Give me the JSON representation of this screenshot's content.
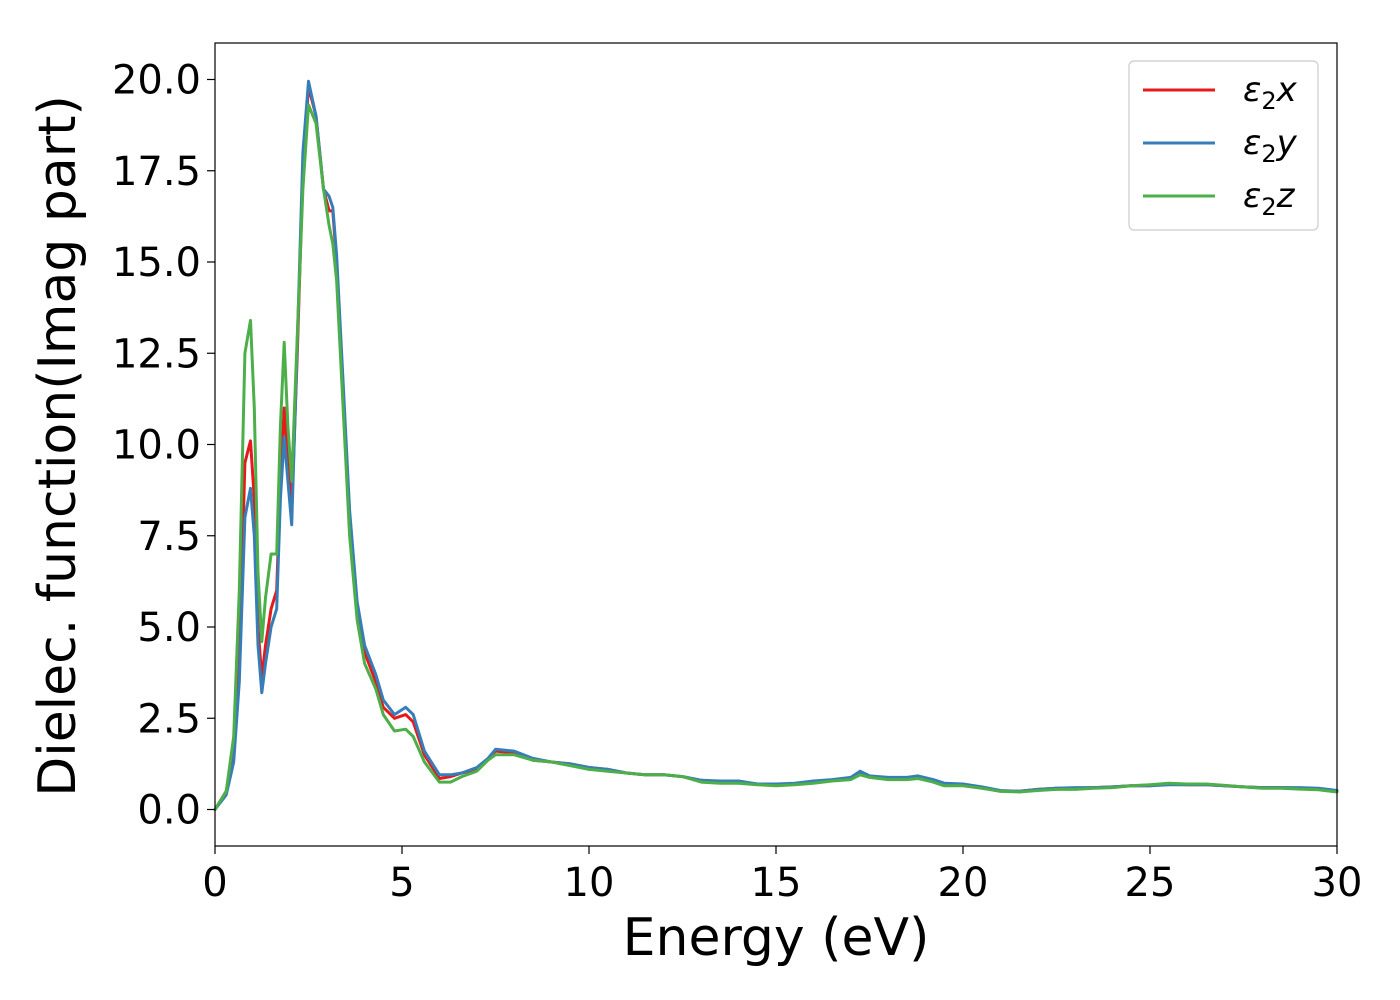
{
  "chart_data": {
    "type": "line",
    "xlabel": "Energy (eV)",
    "ylabel": "Dielec. function(Imag part)",
    "xlim": [
      0,
      30
    ],
    "ylim": [
      -1,
      21
    ],
    "xticks": [
      0,
      5,
      10,
      15,
      20,
      25,
      30
    ],
    "xtick_labels": [
      "0",
      "5",
      "10",
      "15",
      "20",
      "25",
      "30"
    ],
    "yticks": [
      0,
      2.5,
      5,
      7.5,
      10,
      12.5,
      15,
      17.5,
      20
    ],
    "ytick_labels": [
      "0.0",
      "2.5",
      "5.0",
      "7.5",
      "10.0",
      "12.5",
      "15.0",
      "17.5",
      "20.0"
    ],
    "grid": false,
    "legend": "top-right",
    "series": [
      {
        "name": "ε₂x",
        "base": "ε",
        "sub": "2",
        "suffix": "x",
        "color": "#e41a1c",
        "points": [
          [
            0,
            0
          ],
          [
            0.3,
            0.5
          ],
          [
            0.5,
            1.5
          ],
          [
            0.65,
            4.0
          ],
          [
            0.8,
            9.5
          ],
          [
            0.95,
            10.1
          ],
          [
            1.05,
            8.5
          ],
          [
            1.15,
            5.0
          ],
          [
            1.25,
            3.6
          ],
          [
            1.35,
            4.5
          ],
          [
            1.5,
            5.5
          ],
          [
            1.65,
            6.0
          ],
          [
            1.75,
            9.0
          ],
          [
            1.85,
            11.0
          ],
          [
            1.95,
            9.5
          ],
          [
            2.05,
            8.2
          ],
          [
            2.2,
            12.5
          ],
          [
            2.35,
            17.5
          ],
          [
            2.5,
            19.8
          ],
          [
            2.7,
            19.0
          ],
          [
            2.9,
            17.0
          ],
          [
            3.05,
            16.4
          ],
          [
            3.15,
            16.4
          ],
          [
            3.25,
            15.0
          ],
          [
            3.4,
            12.0
          ],
          [
            3.6,
            8.0
          ],
          [
            3.8,
            5.5
          ],
          [
            4.0,
            4.3
          ],
          [
            4.3,
            3.5
          ],
          [
            4.5,
            2.8
          ],
          [
            4.8,
            2.5
          ],
          [
            5.1,
            2.6
          ],
          [
            5.3,
            2.4
          ],
          [
            5.6,
            1.5
          ],
          [
            6.0,
            0.85
          ],
          [
            6.3,
            0.9
          ],
          [
            6.6,
            1.0
          ],
          [
            7.0,
            1.1
          ],
          [
            7.3,
            1.4
          ],
          [
            7.5,
            1.6
          ],
          [
            8.0,
            1.55
          ],
          [
            8.5,
            1.35
          ],
          [
            9.0,
            1.3
          ],
          [
            9.5,
            1.25
          ],
          [
            10.0,
            1.15
          ],
          [
            10.5,
            1.1
          ],
          [
            11.0,
            1.0
          ],
          [
            11.5,
            0.95
          ],
          [
            12.0,
            0.95
          ],
          [
            12.5,
            0.9
          ],
          [
            13.0,
            0.8
          ],
          [
            13.5,
            0.75
          ],
          [
            14.0,
            0.75
          ],
          [
            14.5,
            0.7
          ],
          [
            15.0,
            0.68
          ],
          [
            15.5,
            0.7
          ],
          [
            16.0,
            0.75
          ],
          [
            16.5,
            0.8
          ],
          [
            17.0,
            0.85
          ],
          [
            17.25,
            1.0
          ],
          [
            17.5,
            0.9
          ],
          [
            18.0,
            0.85
          ],
          [
            18.5,
            0.85
          ],
          [
            18.8,
            0.9
          ],
          [
            19.2,
            0.8
          ],
          [
            19.5,
            0.7
          ],
          [
            20.0,
            0.68
          ],
          [
            20.5,
            0.6
          ],
          [
            21.0,
            0.5
          ],
          [
            21.5,
            0.5
          ],
          [
            22.0,
            0.55
          ],
          [
            22.5,
            0.58
          ],
          [
            23.0,
            0.58
          ],
          [
            23.5,
            0.6
          ],
          [
            24.0,
            0.62
          ],
          [
            24.5,
            0.65
          ],
          [
            25.0,
            0.65
          ],
          [
            25.5,
            0.7
          ],
          [
            26.0,
            0.68
          ],
          [
            26.5,
            0.68
          ],
          [
            27.0,
            0.65
          ],
          [
            27.5,
            0.62
          ],
          [
            28.0,
            0.6
          ],
          [
            28.5,
            0.6
          ],
          [
            29.0,
            0.58
          ],
          [
            29.5,
            0.55
          ],
          [
            30.0,
            0.5
          ]
        ]
      },
      {
        "name": "ε₂y",
        "base": "ε",
        "sub": "2",
        "suffix": "y",
        "color": "#377eb8",
        "points": [
          [
            0,
            0
          ],
          [
            0.3,
            0.4
          ],
          [
            0.5,
            1.3
          ],
          [
            0.65,
            3.5
          ],
          [
            0.8,
            8.0
          ],
          [
            0.95,
            8.8
          ],
          [
            1.05,
            7.5
          ],
          [
            1.15,
            4.5
          ],
          [
            1.25,
            3.2
          ],
          [
            1.35,
            4.0
          ],
          [
            1.5,
            5.0
          ],
          [
            1.65,
            5.5
          ],
          [
            1.75,
            8.5
          ],
          [
            1.85,
            10.2
          ],
          [
            1.95,
            9.0
          ],
          [
            2.05,
            7.8
          ],
          [
            2.2,
            12.8
          ],
          [
            2.35,
            18.0
          ],
          [
            2.5,
            19.95
          ],
          [
            2.7,
            19.0
          ],
          [
            2.9,
            17.0
          ],
          [
            3.05,
            16.8
          ],
          [
            3.15,
            16.5
          ],
          [
            3.25,
            15.2
          ],
          [
            3.4,
            12.2
          ],
          [
            3.6,
            8.2
          ],
          [
            3.8,
            5.7
          ],
          [
            4.0,
            4.5
          ],
          [
            4.3,
            3.7
          ],
          [
            4.5,
            3.0
          ],
          [
            4.8,
            2.6
          ],
          [
            5.1,
            2.8
          ],
          [
            5.3,
            2.6
          ],
          [
            5.6,
            1.6
          ],
          [
            6.0,
            0.95
          ],
          [
            6.3,
            0.95
          ],
          [
            6.6,
            1.0
          ],
          [
            7.0,
            1.15
          ],
          [
            7.3,
            1.4
          ],
          [
            7.5,
            1.65
          ],
          [
            8.0,
            1.6
          ],
          [
            8.5,
            1.4
          ],
          [
            9.0,
            1.3
          ],
          [
            9.5,
            1.25
          ],
          [
            10.0,
            1.15
          ],
          [
            10.5,
            1.1
          ],
          [
            11.0,
            1.0
          ],
          [
            11.5,
            0.95
          ],
          [
            12.0,
            0.95
          ],
          [
            12.5,
            0.9
          ],
          [
            13.0,
            0.8
          ],
          [
            13.5,
            0.78
          ],
          [
            14.0,
            0.78
          ],
          [
            14.5,
            0.7
          ],
          [
            15.0,
            0.7
          ],
          [
            15.5,
            0.72
          ],
          [
            16.0,
            0.78
          ],
          [
            16.5,
            0.82
          ],
          [
            17.0,
            0.88
          ],
          [
            17.25,
            1.05
          ],
          [
            17.5,
            0.92
          ],
          [
            18.0,
            0.88
          ],
          [
            18.5,
            0.88
          ],
          [
            18.8,
            0.92
          ],
          [
            19.2,
            0.82
          ],
          [
            19.5,
            0.72
          ],
          [
            20.0,
            0.7
          ],
          [
            20.5,
            0.62
          ],
          [
            21.0,
            0.52
          ],
          [
            21.5,
            0.5
          ],
          [
            22.0,
            0.55
          ],
          [
            22.5,
            0.58
          ],
          [
            23.0,
            0.6
          ],
          [
            23.5,
            0.6
          ],
          [
            24.0,
            0.62
          ],
          [
            24.5,
            0.65
          ],
          [
            25.0,
            0.65
          ],
          [
            25.5,
            0.68
          ],
          [
            26.0,
            0.68
          ],
          [
            26.5,
            0.68
          ],
          [
            27.0,
            0.65
          ],
          [
            27.5,
            0.62
          ],
          [
            28.0,
            0.6
          ],
          [
            28.5,
            0.6
          ],
          [
            29.0,
            0.6
          ],
          [
            29.5,
            0.58
          ],
          [
            30.0,
            0.52
          ]
        ]
      },
      {
        "name": "ε₂z",
        "base": "ε",
        "sub": "2",
        "suffix": "z",
        "color": "#4daf4a",
        "points": [
          [
            0,
            0
          ],
          [
            0.3,
            0.5
          ],
          [
            0.5,
            2.0
          ],
          [
            0.65,
            6.0
          ],
          [
            0.8,
            12.5
          ],
          [
            0.95,
            13.4
          ],
          [
            1.05,
            11.0
          ],
          [
            1.15,
            6.5
          ],
          [
            1.25,
            4.6
          ],
          [
            1.35,
            5.8
          ],
          [
            1.5,
            7.0
          ],
          [
            1.65,
            7.0
          ],
          [
            1.75,
            10.5
          ],
          [
            1.85,
            12.8
          ],
          [
            1.95,
            10.5
          ],
          [
            2.05,
            9.0
          ],
          [
            2.2,
            13.0
          ],
          [
            2.35,
            17.0
          ],
          [
            2.5,
            19.3
          ],
          [
            2.7,
            18.8
          ],
          [
            2.9,
            17.0
          ],
          [
            3.05,
            16.0
          ],
          [
            3.15,
            15.5
          ],
          [
            3.25,
            14.5
          ],
          [
            3.4,
            11.5
          ],
          [
            3.6,
            7.5
          ],
          [
            3.8,
            5.2
          ],
          [
            4.0,
            4.0
          ],
          [
            4.3,
            3.3
          ],
          [
            4.5,
            2.6
          ],
          [
            4.8,
            2.15
          ],
          [
            5.1,
            2.2
          ],
          [
            5.3,
            2.0
          ],
          [
            5.6,
            1.3
          ],
          [
            6.0,
            0.75
          ],
          [
            6.3,
            0.75
          ],
          [
            6.6,
            0.9
          ],
          [
            7.0,
            1.05
          ],
          [
            7.3,
            1.35
          ],
          [
            7.5,
            1.5
          ],
          [
            8.0,
            1.5
          ],
          [
            8.5,
            1.35
          ],
          [
            9.0,
            1.3
          ],
          [
            9.5,
            1.2
          ],
          [
            10.0,
            1.1
          ],
          [
            10.5,
            1.05
          ],
          [
            11.0,
            1.0
          ],
          [
            11.5,
            0.95
          ],
          [
            12.0,
            0.95
          ],
          [
            12.5,
            0.9
          ],
          [
            13.0,
            0.75
          ],
          [
            13.5,
            0.72
          ],
          [
            14.0,
            0.72
          ],
          [
            14.5,
            0.68
          ],
          [
            15.0,
            0.65
          ],
          [
            15.5,
            0.68
          ],
          [
            16.0,
            0.72
          ],
          [
            16.5,
            0.78
          ],
          [
            17.0,
            0.82
          ],
          [
            17.25,
            0.95
          ],
          [
            17.5,
            0.88
          ],
          [
            18.0,
            0.82
          ],
          [
            18.5,
            0.82
          ],
          [
            18.8,
            0.85
          ],
          [
            19.2,
            0.75
          ],
          [
            19.5,
            0.65
          ],
          [
            20.0,
            0.65
          ],
          [
            20.5,
            0.58
          ],
          [
            21.0,
            0.5
          ],
          [
            21.5,
            0.48
          ],
          [
            22.0,
            0.52
          ],
          [
            22.5,
            0.55
          ],
          [
            23.0,
            0.55
          ],
          [
            23.5,
            0.58
          ],
          [
            24.0,
            0.6
          ],
          [
            24.5,
            0.65
          ],
          [
            25.0,
            0.68
          ],
          [
            25.5,
            0.72
          ],
          [
            26.0,
            0.7
          ],
          [
            26.5,
            0.7
          ],
          [
            27.0,
            0.66
          ],
          [
            27.5,
            0.62
          ],
          [
            28.0,
            0.58
          ],
          [
            28.5,
            0.58
          ],
          [
            29.0,
            0.56
          ],
          [
            29.5,
            0.54
          ],
          [
            30.0,
            0.48
          ]
        ]
      }
    ]
  }
}
